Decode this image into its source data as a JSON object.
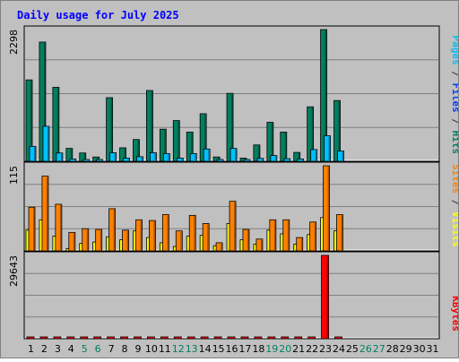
{
  "chart_data": {
    "type": "bar",
    "title": "Daily usage for July 2025",
    "x": [
      "1",
      "2",
      "3",
      "4",
      "5",
      "6",
      "7",
      "8",
      "9",
      "10",
      "11",
      "12",
      "13",
      "14",
      "15",
      "16",
      "17",
      "18",
      "19",
      "20",
      "21",
      "22",
      "23",
      "24",
      "25",
      "26",
      "27",
      "28",
      "29",
      "30",
      "31"
    ],
    "weekend_days": [
      5,
      6,
      12,
      13,
      19,
      20,
      26,
      27
    ],
    "panels": [
      {
        "max_label": "2298",
        "ymax": 2298,
        "legend": [
          {
            "text": "Pages",
            "color": "#00c0ff"
          },
          {
            "text": " / ",
            "color": "#333333"
          },
          {
            "text": "Files",
            "color": "#0040ff"
          },
          {
            "text": " / ",
            "color": "#333333"
          },
          {
            "text": "Hits",
            "color": "#008060"
          }
        ],
        "series": [
          {
            "name": "Hits",
            "color": "#008060",
            "values": [
              1420,
              2080,
              1290,
              225,
              145,
              75,
              1110,
              235,
              380,
              1235,
              560,
              710,
              510,
              830,
              75,
              1185,
              55,
              285,
              680,
              510,
              155,
              950,
              2298,
              1060,
              0,
              0,
              0,
              0,
              0,
              0,
              0
            ]
          },
          {
            "name": "Files",
            "color": "#0040ff",
            "values": [
              0,
              0,
              0,
              0,
              0,
              0,
              0,
              0,
              0,
              0,
              0,
              0,
              0,
              0,
              0,
              0,
              0,
              0,
              0,
              0,
              0,
              0,
              0,
              0,
              0,
              0,
              0,
              0,
              0,
              0,
              0
            ]
          },
          {
            "name": "Pages",
            "color": "#00c0ff",
            "values": [
              260,
              610,
              145,
              40,
              30,
              20,
              150,
              55,
              80,
              150,
              135,
              55,
              135,
              215,
              25,
              225,
              25,
              50,
              100,
              45,
              40,
              205,
              445,
              180,
              0,
              0,
              0,
              0,
              0,
              0,
              0
            ]
          }
        ]
      },
      {
        "max_label": "115",
        "ymax": 115,
        "legend": [
          {
            "text": "Sites",
            "color": "#ff8000"
          },
          {
            "text": " / ",
            "color": "#333333"
          },
          {
            "text": "Visits",
            "color": "#ffff00"
          }
        ],
        "series": [
          {
            "name": "Visits",
            "color": "#ffff00",
            "values": [
              28,
              42,
              20,
              3,
              10,
              12,
              19,
              15,
              27,
              18,
              11,
              6,
              20,
              21,
              7,
              37,
              15,
              9,
              28,
              23,
              9,
              22,
              45,
              27,
              0,
              0,
              0,
              0,
              0,
              0,
              0
            ]
          },
          {
            "name": "Sites",
            "color": "#ff8000",
            "values": [
              59,
              101,
              63,
              25,
              30,
              29,
              57,
              28,
              42,
              41,
              49,
              27,
              48,
              37,
              11,
              67,
              29,
              16,
              42,
              42,
              18,
              39,
              115,
              49,
              0,
              0,
              0,
              0,
              0,
              0,
              0
            ]
          }
        ]
      },
      {
        "max_label": "29643",
        "ymax": 29643,
        "legend": [
          {
            "text": "KBytes",
            "color": "#ff0000"
          }
        ],
        "series": [
          {
            "name": "KBytes",
            "color": "#ff0000",
            "values": [
              300,
              300,
              300,
              300,
              300,
              300,
              300,
              300,
              300,
              300,
              300,
              300,
              300,
              300,
              300,
              300,
              300,
              300,
              300,
              300,
              300,
              300,
              29643,
              300,
              0,
              0,
              0,
              0,
              0,
              0,
              0
            ]
          }
        ]
      }
    ]
  }
}
